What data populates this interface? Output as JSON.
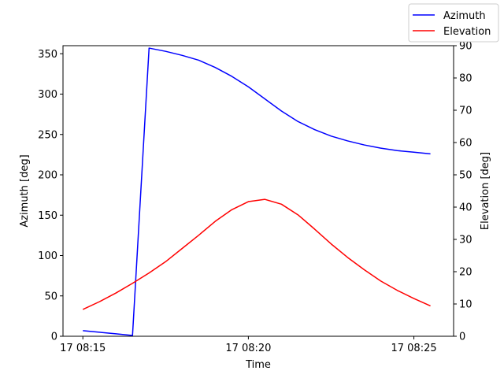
{
  "chart_data": {
    "type": "line",
    "xlabel": "Time",
    "ylabel_left": "Azimuth [deg]",
    "ylabel_right": "Elevation [deg]",
    "x_ticks": [
      "17 08:15",
      "17 08:20",
      "17 08:25"
    ],
    "x_tick_values": [
      0,
      5,
      10
    ],
    "xlim": [
      -0.6,
      11.2
    ],
    "ylim_left": [
      0,
      360
    ],
    "ylim_right": [
      0,
      90
    ],
    "yticks_left": [
      0,
      50,
      100,
      150,
      200,
      250,
      300,
      350
    ],
    "yticks_right": [
      0,
      10,
      20,
      30,
      40,
      50,
      60,
      70,
      80,
      90
    ],
    "grid": false,
    "legend_position": "top-right",
    "series": [
      {
        "name": "Azimuth",
        "axis": "left",
        "color": "#0000ff",
        "x": [
          0,
          0.5,
          1,
          1.5,
          2,
          2.5,
          3,
          3.5,
          4,
          4.5,
          5,
          5.5,
          6,
          6.5,
          7,
          7.5,
          8,
          8.5,
          9,
          9.5,
          10,
          10.5
        ],
        "y": [
          7,
          5,
          3,
          1,
          357,
          353,
          348,
          342,
          333,
          322,
          309,
          294,
          279,
          266,
          256,
          248,
          242,
          237,
          233,
          230,
          228,
          226
        ]
      },
      {
        "name": "Elevation",
        "axis": "right",
        "color": "#ff0000",
        "x": [
          0,
          0.5,
          1,
          1.5,
          2,
          2.5,
          3,
          3.5,
          4,
          4.5,
          5,
          5.5,
          6,
          6.5,
          7,
          7.5,
          8,
          8.5,
          9,
          9.5,
          10,
          10.5
        ],
        "y": [
          8.3,
          10.7,
          13.4,
          16.4,
          19.6,
          23.1,
          27.2,
          31.3,
          35.6,
          39.2,
          41.7,
          42.4,
          40.9,
          37.6,
          33.2,
          28.6,
          24.4,
          20.6,
          17.1,
          14.2,
          11.7,
          9.4
        ]
      }
    ]
  }
}
